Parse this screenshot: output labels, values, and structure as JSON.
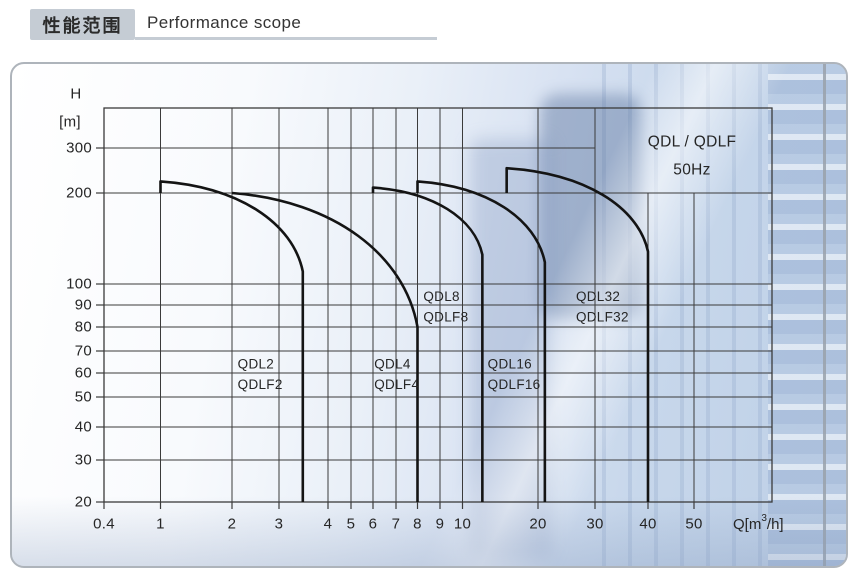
{
  "header": {
    "title_zh": "性能范围",
    "title_en": "Performance scope"
  },
  "chart_data": {
    "type": "line",
    "title": "QDL / QDLF",
    "subtitle": "50Hz",
    "xlabel": "Q[m³/h]",
    "ylabel_line1": "H",
    "ylabel_line2": "[m]",
    "x_scale": "log",
    "y_scale": "log",
    "grid": true,
    "x_ticks": [
      0.4,
      1,
      2,
      3,
      4,
      5,
      6,
      7,
      8,
      9,
      10,
      20,
      30,
      40,
      50
    ],
    "y_ticks": [
      20,
      30,
      40,
      50,
      60,
      70,
      80,
      90,
      100,
      200,
      300
    ],
    "xlim": [
      0.4,
      68
    ],
    "ylim": [
      20,
      400
    ],
    "colors": {
      "curve": "#141414",
      "grid": "#3b3b3b",
      "text": "#262626"
    },
    "envelopes": [
      {
        "model": "QDL2",
        "label": [
          "QDL2",
          "QDLF2"
        ],
        "label_at": {
          "q": 2.1,
          "h": 64
        },
        "q_start": 1,
        "h_base": 200,
        "h_top": 222,
        "q_end": 3.45,
        "h_corner": 110,
        "h_bottom": 20
      },
      {
        "model": "QDL4",
        "label": [
          "QDL4",
          "QDLF4"
        ],
        "label_at": {
          "q": 6.05,
          "h": 64
        },
        "q_start": 2,
        "h_base": 200,
        "h_top": 200,
        "q_end": 8,
        "h_corner": 80,
        "h_bottom": 20
      },
      {
        "model": "QDL8",
        "label": [
          "QDL8",
          "QDLF8"
        ],
        "label_at": {
          "q": 8.25,
          "h": 94
        },
        "q_start": 6,
        "h_base": 200,
        "h_top": 210,
        "q_end": 12,
        "h_corner": 125,
        "h_bottom": 20
      },
      {
        "model": "QDL16",
        "label": [
          "QDL16",
          "QDLF16"
        ],
        "label_at": {
          "q": 12.6,
          "h": 64
        },
        "q_start": 8,
        "h_base": 200,
        "h_top": 222,
        "q_end": 21,
        "h_corner": 118,
        "h_bottom": 20
      },
      {
        "model": "QDL32",
        "label": [
          "QDL32",
          "QDLF32"
        ],
        "label_at": {
          "q": 26.2,
          "h": 94
        },
        "q_start": 15,
        "h_base": 200,
        "h_top": 250,
        "q_end": 40,
        "h_corner": 128,
        "h_bottom": 20
      }
    ]
  }
}
